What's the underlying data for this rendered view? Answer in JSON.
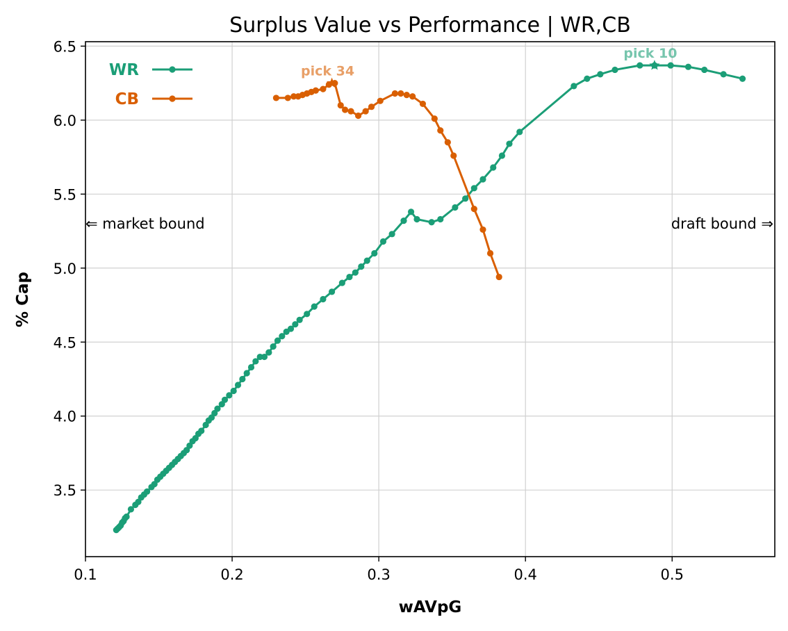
{
  "chart_data": {
    "type": "line",
    "title": "Surplus Value vs Performance | WR,CB",
    "xlabel": "wAVpG",
    "ylabel": "% Cap",
    "xlim": [
      0.1,
      0.57
    ],
    "ylim": [
      3.05,
      6.53
    ],
    "xticks": [
      0.1,
      0.2,
      0.3,
      0.4,
      0.5
    ],
    "yticks": [
      3.5,
      4.0,
      4.5,
      5.0,
      5.5,
      6.0,
      6.5
    ],
    "xtick_labels": [
      "0.1",
      "0.2",
      "0.3",
      "0.4",
      "0.5"
    ],
    "ytick_labels": [
      "3.5",
      "4.0",
      "4.5",
      "5.0",
      "5.5",
      "6.0",
      "6.5"
    ],
    "grid": true,
    "legend_position": "top-left",
    "annotations": {
      "left": "⇐ market bound",
      "right": "draft bound ⇒"
    },
    "series": [
      {
        "name": "WR",
        "color": "#1b9e77",
        "marker": "circle",
        "highlight": {
          "label": "pick 10",
          "x": 0.488,
          "y": 6.37
        },
        "points": [
          [
            0.121,
            3.23
          ],
          [
            0.122,
            3.24
          ],
          [
            0.123,
            3.25
          ],
          [
            0.124,
            3.26
          ],
          [
            0.125,
            3.28
          ],
          [
            0.126,
            3.29
          ],
          [
            0.127,
            3.31
          ],
          [
            0.128,
            3.32
          ],
          [
            0.131,
            3.37
          ],
          [
            0.134,
            3.4
          ],
          [
            0.136,
            3.42
          ],
          [
            0.138,
            3.45
          ],
          [
            0.14,
            3.47
          ],
          [
            0.142,
            3.49
          ],
          [
            0.145,
            3.52
          ],
          [
            0.147,
            3.54
          ],
          [
            0.149,
            3.57
          ],
          [
            0.151,
            3.59
          ],
          [
            0.153,
            3.61
          ],
          [
            0.155,
            3.63
          ],
          [
            0.157,
            3.65
          ],
          [
            0.159,
            3.67
          ],
          [
            0.161,
            3.69
          ],
          [
            0.163,
            3.71
          ],
          [
            0.165,
            3.73
          ],
          [
            0.167,
            3.75
          ],
          [
            0.169,
            3.77
          ],
          [
            0.171,
            3.8
          ],
          [
            0.173,
            3.83
          ],
          [
            0.175,
            3.85
          ],
          [
            0.177,
            3.88
          ],
          [
            0.179,
            3.9
          ],
          [
            0.182,
            3.94
          ],
          [
            0.184,
            3.97
          ],
          [
            0.186,
            3.99
          ],
          [
            0.188,
            4.02
          ],
          [
            0.19,
            4.05
          ],
          [
            0.193,
            4.08
          ],
          [
            0.195,
            4.11
          ],
          [
            0.198,
            4.14
          ],
          [
            0.201,
            4.17
          ],
          [
            0.204,
            4.21
          ],
          [
            0.207,
            4.25
          ],
          [
            0.21,
            4.29
          ],
          [
            0.213,
            4.33
          ],
          [
            0.216,
            4.37
          ],
          [
            0.219,
            4.4
          ],
          [
            0.222,
            4.4
          ],
          [
            0.225,
            4.43
          ],
          [
            0.228,
            4.47
          ],
          [
            0.231,
            4.51
          ],
          [
            0.234,
            4.54
          ],
          [
            0.237,
            4.57
          ],
          [
            0.24,
            4.59
          ],
          [
            0.243,
            4.62
          ],
          [
            0.246,
            4.65
          ],
          [
            0.251,
            4.69
          ],
          [
            0.256,
            4.74
          ],
          [
            0.262,
            4.79
          ],
          [
            0.268,
            4.84
          ],
          [
            0.275,
            4.9
          ],
          [
            0.28,
            4.94
          ],
          [
            0.284,
            4.97
          ],
          [
            0.288,
            5.01
          ],
          [
            0.292,
            5.05
          ],
          [
            0.297,
            5.1
          ],
          [
            0.303,
            5.18
          ],
          [
            0.309,
            5.23
          ],
          [
            0.317,
            5.32
          ],
          [
            0.322,
            5.38
          ],
          [
            0.326,
            5.33
          ],
          [
            0.336,
            5.31
          ],
          [
            0.342,
            5.33
          ],
          [
            0.352,
            5.41
          ],
          [
            0.359,
            5.47
          ],
          [
            0.365,
            5.54
          ],
          [
            0.371,
            5.6
          ],
          [
            0.378,
            5.68
          ],
          [
            0.384,
            5.76
          ],
          [
            0.389,
            5.84
          ],
          [
            0.396,
            5.92
          ],
          [
            0.433,
            6.23
          ],
          [
            0.442,
            6.28
          ],
          [
            0.451,
            6.31
          ],
          [
            0.461,
            6.34
          ],
          [
            0.478,
            6.37
          ],
          [
            0.488,
            6.37
          ],
          [
            0.499,
            6.37
          ],
          [
            0.511,
            6.36
          ],
          [
            0.522,
            6.34
          ],
          [
            0.535,
            6.31
          ],
          [
            0.548,
            6.28
          ]
        ]
      },
      {
        "name": "CB",
        "color": "#d95f02",
        "marker": "circle",
        "highlight": {
          "label": "pick 34",
          "x": 0.268,
          "y": 6.25
        },
        "points": [
          [
            0.23,
            6.15
          ],
          [
            0.238,
            6.15
          ],
          [
            0.242,
            6.16
          ],
          [
            0.245,
            6.16
          ],
          [
            0.248,
            6.17
          ],
          [
            0.251,
            6.18
          ],
          [
            0.254,
            6.19
          ],
          [
            0.257,
            6.2
          ],
          [
            0.262,
            6.21
          ],
          [
            0.266,
            6.24
          ],
          [
            0.27,
            6.25
          ],
          [
            0.274,
            6.1
          ],
          [
            0.277,
            6.07
          ],
          [
            0.281,
            6.06
          ],
          [
            0.286,
            6.03
          ],
          [
            0.291,
            6.06
          ],
          [
            0.295,
            6.09
          ],
          [
            0.301,
            6.13
          ],
          [
            0.311,
            6.18
          ],
          [
            0.315,
            6.18
          ],
          [
            0.319,
            6.17
          ],
          [
            0.323,
            6.16
          ],
          [
            0.33,
            6.11
          ],
          [
            0.338,
            6.01
          ],
          [
            0.342,
            5.93
          ],
          [
            0.347,
            5.85
          ],
          [
            0.351,
            5.76
          ],
          [
            0.365,
            5.4
          ],
          [
            0.371,
            5.26
          ],
          [
            0.376,
            5.1
          ],
          [
            0.382,
            4.94
          ]
        ]
      }
    ]
  }
}
